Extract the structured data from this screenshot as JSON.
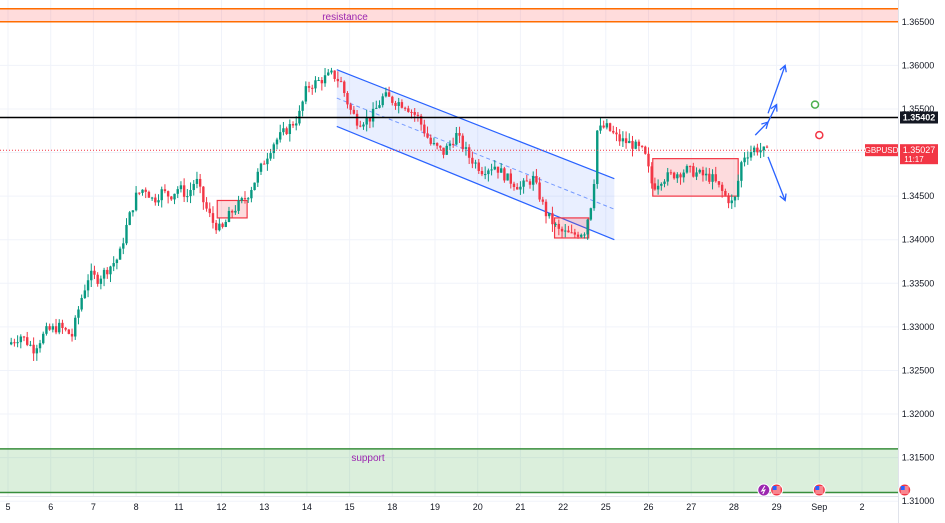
{
  "chart_data": {
    "type": "candlestick",
    "symbol": "GBPUSD",
    "ylim": [
      1.3075,
      1.3675
    ],
    "y_ticks": [
      1.31,
      1.315,
      1.32,
      1.325,
      1.33,
      1.335,
      1.34,
      1.345,
      1.35,
      1.355,
      1.36,
      1.365
    ],
    "y_tick_labels": [
      "1.31000",
      "1.31500",
      "1.32000",
      "1.32500",
      "1.33000",
      "1.33500",
      "1.34000",
      "1.34500",
      "1.35000",
      "1.35500",
      "1.36000",
      "1.36500"
    ],
    "x_labels": [
      "5",
      "6",
      "7",
      "8",
      "11",
      "12",
      "13",
      "14",
      "15",
      "18",
      "19",
      "20",
      "21",
      "22",
      "25",
      "26",
      "27",
      "28",
      "29",
      "Sep",
      "2"
    ],
    "x_label_index": [
      0,
      1,
      2,
      3,
      4,
      5,
      6,
      7,
      8,
      9,
      10,
      11,
      12,
      13,
      14,
      15,
      16,
      17,
      18,
      19,
      20
    ],
    "day_count": 21.2,
    "price_path": [
      [
        0.0,
        1.328
      ],
      [
        0.3,
        1.329
      ],
      [
        0.6,
        1.3275
      ],
      [
        0.9,
        1.3295
      ],
      [
        1.2,
        1.33
      ],
      [
        1.5,
        1.329
      ],
      [
        1.7,
        1.333
      ],
      [
        1.9,
        1.336
      ],
      [
        2.1,
        1.3355
      ],
      [
        2.4,
        1.337
      ],
      [
        2.6,
        1.338
      ],
      [
        2.8,
        1.342
      ],
      [
        3.0,
        1.345
      ],
      [
        3.2,
        1.346
      ],
      [
        3.4,
        1.3445
      ],
      [
        3.6,
        1.3455
      ],
      [
        3.8,
        1.345
      ],
      [
        4.0,
        1.346
      ],
      [
        4.2,
        1.345
      ],
      [
        4.4,
        1.347
      ],
      [
        4.6,
        1.344
      ],
      [
        4.8,
        1.342
      ],
      [
        5.0,
        1.341
      ],
      [
        5.2,
        1.343
      ],
      [
        5.4,
        1.344
      ],
      [
        5.6,
        1.345
      ],
      [
        5.8,
        1.347
      ],
      [
        6.0,
        1.349
      ],
      [
        6.2,
        1.351
      ],
      [
        6.5,
        1.3525
      ],
      [
        6.8,
        1.354
      ],
      [
        7.0,
        1.3575
      ],
      [
        7.2,
        1.358
      ],
      [
        7.4,
        1.3585
      ],
      [
        7.6,
        1.359
      ],
      [
        7.8,
        1.358
      ],
      [
        8.0,
        1.355
      ],
      [
        8.2,
        1.3535
      ],
      [
        8.5,
        1.354
      ],
      [
        8.8,
        1.3565
      ],
      [
        9.0,
        1.356
      ],
      [
        9.3,
        1.3555
      ],
      [
        9.6,
        1.354
      ],
      [
        9.9,
        1.351
      ],
      [
        10.2,
        1.35
      ],
      [
        10.5,
        1.352
      ],
      [
        10.8,
        1.3495
      ],
      [
        11.1,
        1.348
      ],
      [
        11.4,
        1.3485
      ],
      [
        11.7,
        1.347
      ],
      [
        12.0,
        1.346
      ],
      [
        12.3,
        1.347
      ],
      [
        12.6,
        1.343
      ],
      [
        12.9,
        1.341
      ],
      [
        13.2,
        1.3405
      ],
      [
        13.5,
        1.341
      ],
      [
        13.7,
        1.345
      ],
      [
        13.8,
        1.3525
      ],
      [
        14.0,
        1.353
      ],
      [
        14.3,
        1.3515
      ],
      [
        14.6,
        1.351
      ],
      [
        14.9,
        1.35
      ],
      [
        15.1,
        1.346
      ],
      [
        15.3,
        1.347
      ],
      [
        15.6,
        1.3475
      ],
      [
        15.9,
        1.348
      ],
      [
        16.2,
        1.3475
      ],
      [
        16.5,
        1.347
      ],
      [
        16.8,
        1.345
      ],
      [
        17.0,
        1.344
      ],
      [
        17.2,
        1.3495
      ],
      [
        17.5,
        1.3505
      ],
      [
        17.8,
        1.35
      ]
    ],
    "resistance": {
      "label": "resistance",
      "low": 1.365,
      "high": 1.3665,
      "color": "#ff6d00"
    },
    "support": {
      "label": "support",
      "low": 1.311,
      "high": 1.316,
      "color": "#388e3c"
    },
    "level_line": {
      "value": 1.35402,
      "label": "1.35402",
      "color": "#000000"
    },
    "current_price": {
      "value": 1.35027,
      "label": "1.35027",
      "countdown": "11:17",
      "symbol_label": "GBPUSD",
      "color": "#f23645"
    },
    "channel": {
      "upper": [
        [
          7.7,
          1.3595
        ],
        [
          14.2,
          1.347
        ]
      ],
      "lower": [
        [
          7.7,
          1.353
        ],
        [
          14.2,
          1.34
        ]
      ],
      "color": "#2962ff"
    },
    "boxes": [
      {
        "x0": 4.9,
        "x1": 5.6,
        "y0": 1.3425,
        "y1": 1.3445
      },
      {
        "x0": 12.8,
        "x1": 13.6,
        "y0": 1.3402,
        "y1": 1.3425
      },
      {
        "x0": 15.1,
        "x1": 17.1,
        "y0": 1.345,
        "y1": 1.3493
      }
    ],
    "arrows": [
      {
        "from": [
          17.8,
          1.3545
        ],
        "to": [
          18.2,
          1.36
        ]
      },
      {
        "from": [
          17.5,
          1.352
        ],
        "to": [
          17.8,
          1.3535
        ]
      },
      {
        "from": [
          17.8,
          1.3535
        ],
        "to": [
          18.0,
          1.3555
        ]
      },
      {
        "from": [
          17.8,
          1.3495
        ],
        "to": [
          18.2,
          1.3445
        ]
      }
    ],
    "markers": [
      {
        "x": 18.9,
        "y": 1.3555,
        "color": "#4caf50"
      },
      {
        "x": 19.0,
        "y": 1.352,
        "color": "#f23645"
      }
    ],
    "event_icons": [
      17.7,
      18.0,
      19.0,
      21.0
    ],
    "colors": {
      "up": "#089981",
      "down": "#f23645",
      "grid": "#f0f3fa",
      "axis_text": "#131722"
    }
  }
}
